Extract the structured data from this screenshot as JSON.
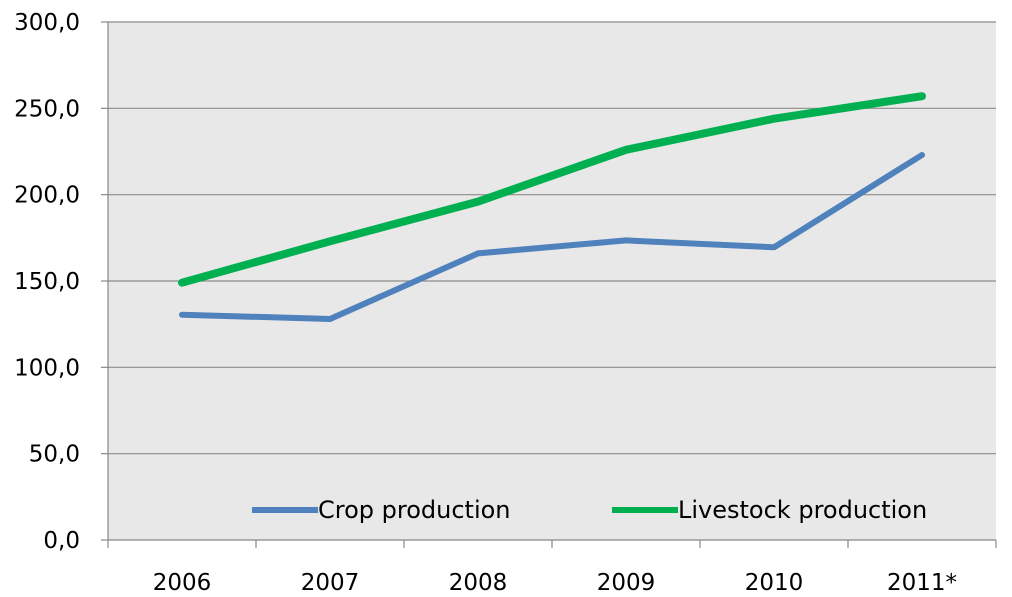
{
  "chart_data": {
    "type": "line",
    "title": "",
    "xlabel": "",
    "ylabel": "",
    "categories": [
      "2006",
      "2007",
      "2008",
      "2009",
      "2010",
      "2011*"
    ],
    "ylim": [
      0,
      300
    ],
    "y_ticks": [
      "0,0",
      "50,0",
      "100,0",
      "150,0",
      "200,0",
      "250,0",
      "300,0"
    ],
    "grid": true,
    "legend_position": "bottom-right inside plot",
    "plot_background": "#e8e8e8",
    "series": [
      {
        "name": "Crop production",
        "color": "#4f81bd",
        "values": [
          130.5,
          128.0,
          166.0,
          173.5,
          169.5,
          223.0
        ]
      },
      {
        "name": "Livestock production",
        "color": "#00b050",
        "values": [
          149.0,
          173.0,
          196.0,
          226.0,
          244.0,
          257.0
        ]
      }
    ]
  }
}
